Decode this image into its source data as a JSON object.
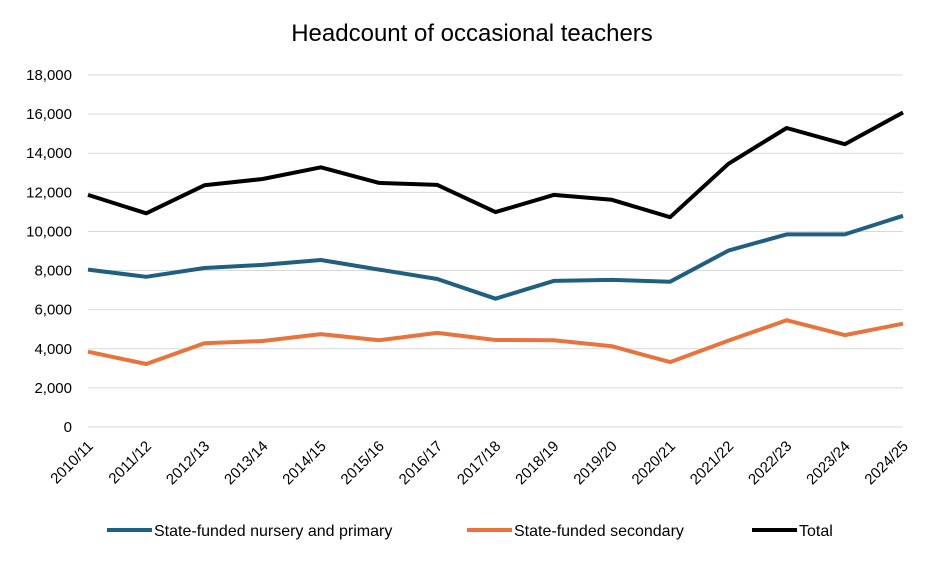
{
  "chart_data": {
    "type": "line",
    "title": "Headcount of occasional teachers",
    "xlabel": "",
    "ylabel": "",
    "categories": [
      "2010/11",
      "2011/12",
      "2012/13",
      "2013/14",
      "2014/15",
      "2015/16",
      "2016/17",
      "2017/18",
      "2018/19",
      "2019/20",
      "2020/21",
      "2021/22",
      "2022/23",
      "2023/24",
      "2024/25"
    ],
    "ylim": [
      0,
      18000
    ],
    "yticks": [
      0,
      2000,
      4000,
      6000,
      8000,
      10000,
      12000,
      14000,
      16000,
      18000
    ],
    "ytick_labels": [
      "0",
      "2,000",
      "4,000",
      "6,000",
      "8,000",
      "10,000",
      "12,000",
      "14,000",
      "16,000",
      "18,000"
    ],
    "grid": true,
    "legend_position": "bottom",
    "series": [
      {
        "name": "State-funded nursery and primary",
        "color": "#1f5f7f",
        "values": [
          8050,
          7680,
          8130,
          8290,
          8540,
          8050,
          7570,
          6560,
          7470,
          7520,
          7430,
          9020,
          9850,
          9850,
          10800
        ]
      },
      {
        "name": "State-funded secondary",
        "color": "#e8743b",
        "values": [
          3850,
          3220,
          4280,
          4400,
          4750,
          4440,
          4810,
          4450,
          4440,
          4130,
          3320,
          4420,
          5460,
          4700,
          5280
        ]
      },
      {
        "name": "Total",
        "color": "#000000",
        "values": [
          11870,
          10930,
          12360,
          12680,
          13280,
          12480,
          12380,
          10990,
          11870,
          11620,
          10730,
          13460,
          15290,
          14460,
          16080
        ]
      }
    ]
  }
}
